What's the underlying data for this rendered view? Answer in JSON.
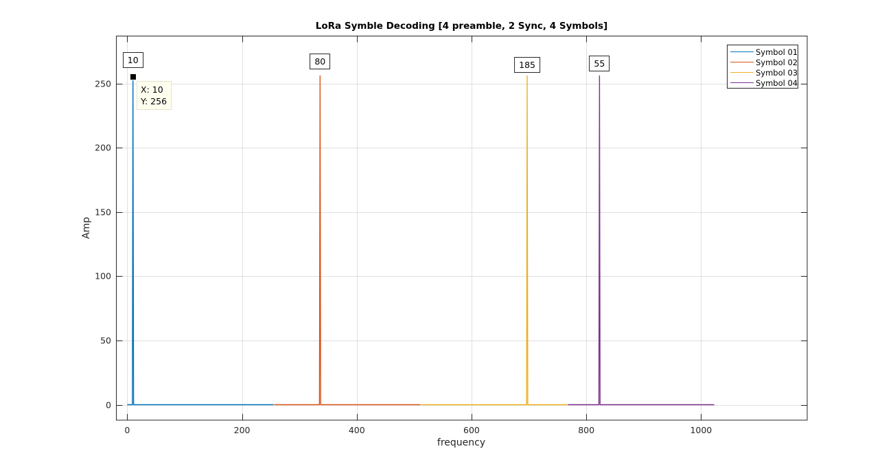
{
  "figure": {
    "title": "LoRa Symble Decoding [4 preamble, 2 Sync, 4 Symbols]",
    "xlabel": "frequency",
    "ylabel": "Amp"
  },
  "axes": {
    "x_ticks": [
      "0",
      "200",
      "400",
      "600",
      "800",
      "1000"
    ],
    "y_ticks": [
      "0",
      "50",
      "100",
      "150",
      "200",
      "250"
    ]
  },
  "legend": {
    "items": [
      {
        "label": "Symbol 01",
        "color": "#0072BD"
      },
      {
        "label": "Symbol 02",
        "color": "#D95319"
      },
      {
        "label": "Symbol 03",
        "color": "#EDB120"
      },
      {
        "label": "Symbol 04",
        "color": "#7E2F8E"
      }
    ]
  },
  "peak_labels": [
    "10",
    "80",
    "185",
    "55"
  ],
  "datatip": {
    "x_text": "X: 10",
    "y_text": "Y: 256"
  },
  "chart_data": {
    "type": "line",
    "title": "LoRa Symble Decoding [4 preamble, 2 Sync, 4 Symbols]",
    "xlabel": "frequency",
    "ylabel": "Amp",
    "xlim": [
      -19,
      1185
    ],
    "ylim": [
      -12,
      287
    ],
    "grid": true,
    "legend_position": "northeast",
    "x_ticks": [
      0,
      200,
      400,
      600,
      800,
      1000
    ],
    "y_ticks": [
      0,
      50,
      100,
      150,
      200,
      250
    ],
    "series": [
      {
        "name": "Symbol 01",
        "color": "#0072BD",
        "x_range": [
          0,
          255
        ],
        "baseline": 0,
        "peak_x": 10,
        "peak_y": 256,
        "symbol_value": 10
      },
      {
        "name": "Symbol 02",
        "color": "#D95319",
        "x_range": [
          256,
          511
        ],
        "baseline": 0,
        "peak_x": 336,
        "peak_y": 256,
        "symbol_value": 80
      },
      {
        "name": "Symbol 03",
        "color": "#EDB120",
        "x_range": [
          512,
          767
        ],
        "baseline": 0,
        "peak_x": 697,
        "peak_y": 256,
        "symbol_value": 185
      },
      {
        "name": "Symbol 04",
        "color": "#7E2F8E",
        "x_range": [
          768,
          1023
        ],
        "baseline": 0,
        "peak_x": 823,
        "peak_y": 256,
        "symbol_value": 55
      }
    ],
    "annotations": [
      {
        "type": "text-box",
        "text": "10",
        "x": 10,
        "y": 270
      },
      {
        "type": "text-box",
        "text": "80",
        "x": 336,
        "y": 268
      },
      {
        "type": "text-box",
        "text": "185",
        "x": 697,
        "y": 266
      },
      {
        "type": "text-box",
        "text": "55",
        "x": 823,
        "y": 266
      },
      {
        "type": "datatip",
        "x": 10,
        "y": 256,
        "text": "X: 10\nY: 256"
      }
    ]
  }
}
